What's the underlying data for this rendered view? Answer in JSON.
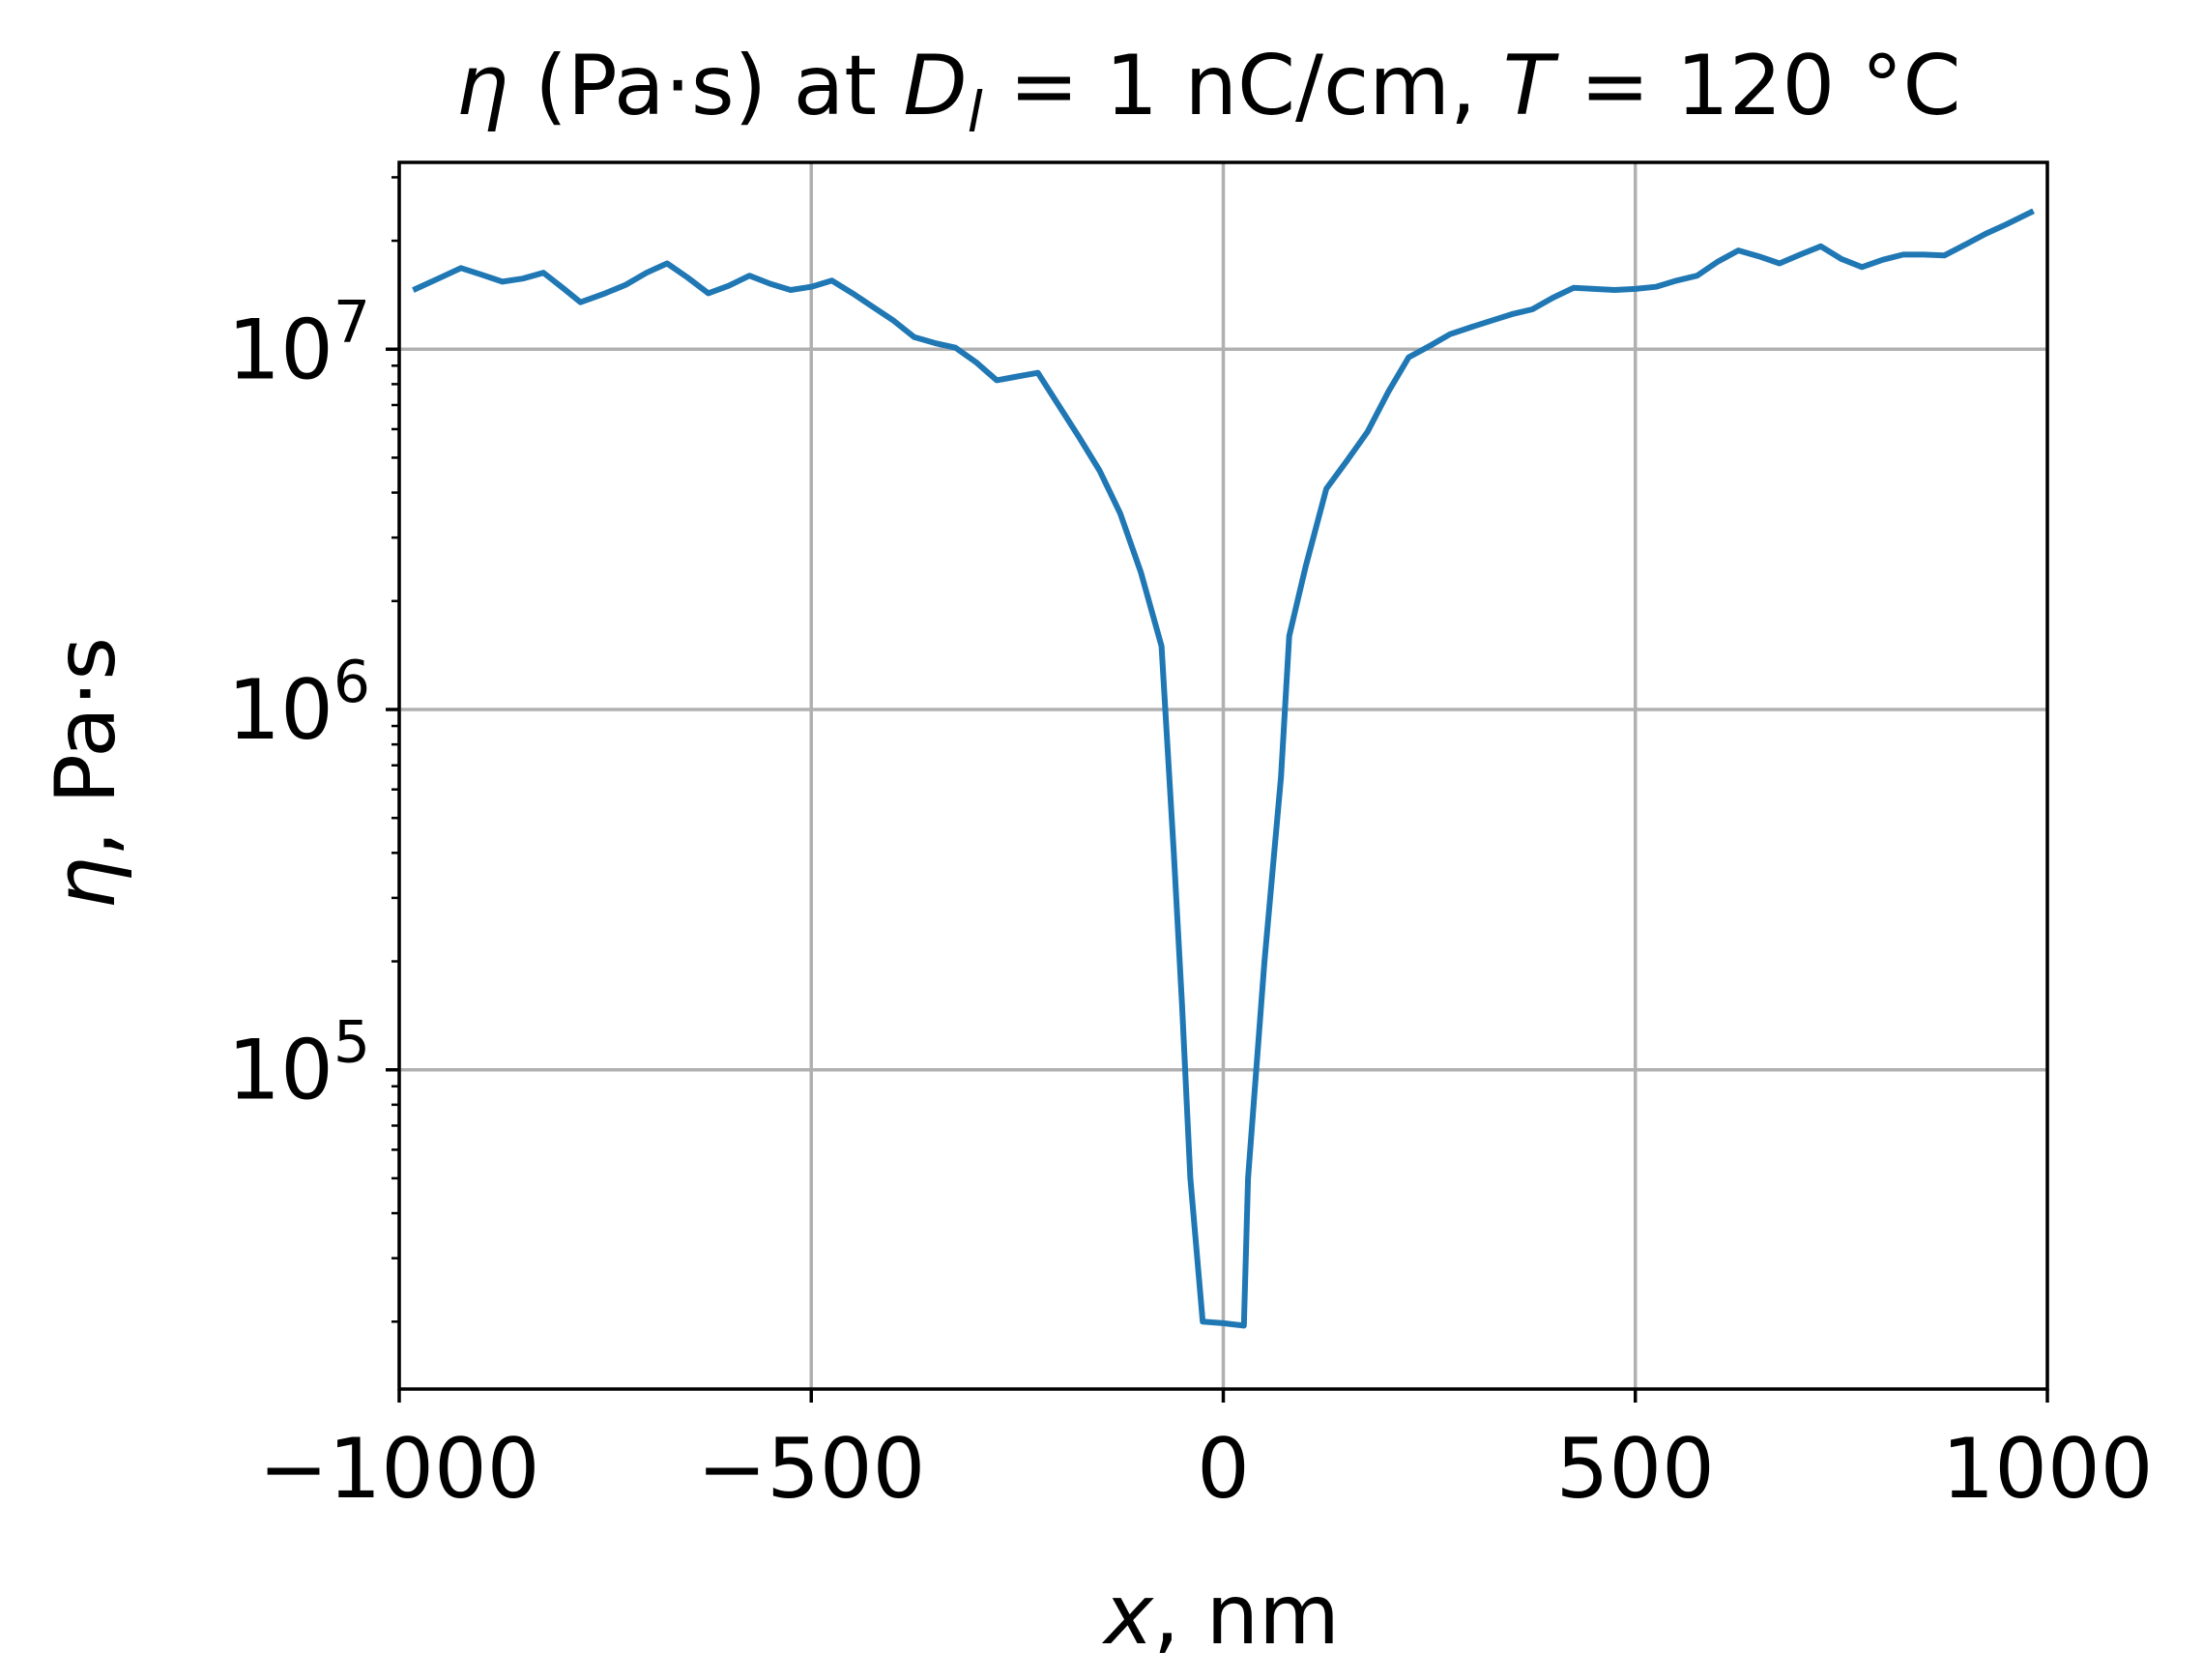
{
  "chart_data": {
    "type": "line",
    "title_parts": {
      "eta": "η",
      "t1": " (Pa·s) at ",
      "D": "D",
      "l": "l",
      "t2": " = 1 nC/cm, ",
      "T": "T",
      "t3": " = 120 °C"
    },
    "xlabel_parts": {
      "x": "x",
      "rest": ", nm"
    },
    "ylabel_parts": {
      "eta": "η",
      "rest": ", Pa·s"
    },
    "xlim": [
      -1000,
      1000
    ],
    "ylim": [
      13000,
      33000000
    ],
    "yscale": "log",
    "grid": true,
    "x_ticks": [
      {
        "value": -1000,
        "label": "−1000"
      },
      {
        "value": -500,
        "label": "−500"
      },
      {
        "value": 0,
        "label": "0"
      },
      {
        "value": 500,
        "label": "500"
      },
      {
        "value": 1000,
        "label": "1000"
      }
    ],
    "y_ticks": [
      {
        "value": 100000,
        "base": "10",
        "exp": "5"
      },
      {
        "value": 1000000,
        "base": "10",
        "exp": "6"
      },
      {
        "value": 10000000,
        "base": "10",
        "exp": "7"
      }
    ],
    "series": [
      {
        "color": "#1f77b4",
        "points": [
          [
            -980,
            14700000
          ],
          [
            -950,
            15800000
          ],
          [
            -925,
            16800000
          ],
          [
            -900,
            16100000
          ],
          [
            -875,
            15400000
          ],
          [
            -850,
            15700000
          ],
          [
            -825,
            16300000
          ],
          [
            -800,
            14700000
          ],
          [
            -780,
            13500000
          ],
          [
            -750,
            14300000
          ],
          [
            -725,
            15100000
          ],
          [
            -700,
            16300000
          ],
          [
            -675,
            17300000
          ],
          [
            -650,
            15800000
          ],
          [
            -625,
            14300000
          ],
          [
            -600,
            15000000
          ],
          [
            -575,
            16000000
          ],
          [
            -550,
            15200000
          ],
          [
            -525,
            14600000
          ],
          [
            -500,
            14900000
          ],
          [
            -475,
            15500000
          ],
          [
            -450,
            14300000
          ],
          [
            -425,
            13100000
          ],
          [
            -400,
            12000000
          ],
          [
            -375,
            10800000
          ],
          [
            -350,
            10400000
          ],
          [
            -325,
            10100000
          ],
          [
            -300,
            9200000
          ],
          [
            -275,
            8200000
          ],
          [
            -250,
            8400000
          ],
          [
            -225,
            8600000
          ],
          [
            -200,
            7000000
          ],
          [
            -175,
            5700000
          ],
          [
            -150,
            4600000
          ],
          [
            -125,
            3500000
          ],
          [
            -100,
            2400000
          ],
          [
            -75,
            1500000
          ],
          [
            -60,
            400000
          ],
          [
            -50,
            150000
          ],
          [
            -40,
            50000
          ],
          [
            -25,
            20000
          ],
          [
            0,
            19800.0
          ],
          [
            25,
            19500
          ],
          [
            30,
            50000
          ],
          [
            50,
            200000
          ],
          [
            70,
            650000
          ],
          [
            80,
            1600000
          ],
          [
            100,
            2500000
          ],
          [
            125,
            4100000
          ],
          [
            150,
            4900000
          ],
          [
            175,
            5900000
          ],
          [
            200,
            7600000
          ],
          [
            225,
            9500000
          ],
          [
            250,
            10200000
          ],
          [
            275,
            11000000
          ],
          [
            300,
            11500000
          ],
          [
            325,
            12000000
          ],
          [
            350,
            12500000
          ],
          [
            375,
            12900000
          ],
          [
            400,
            13900000
          ],
          [
            425,
            14800000
          ],
          [
            450,
            14700000
          ],
          [
            475,
            14600000
          ],
          [
            500,
            14700000
          ],
          [
            525,
            14900000
          ],
          [
            550,
            15500000
          ],
          [
            575,
            16000000
          ],
          [
            600,
            17500000
          ],
          [
            625,
            18800000
          ],
          [
            650,
            18100000
          ],
          [
            675,
            17300000
          ],
          [
            700,
            18300000
          ],
          [
            725,
            19300000
          ],
          [
            750,
            17800000
          ],
          [
            775,
            16900000
          ],
          [
            800,
            17700000
          ],
          [
            825,
            18300000
          ],
          [
            850,
            18300000
          ],
          [
            875,
            18200000
          ],
          [
            900,
            19500000
          ],
          [
            925,
            20900000
          ],
          [
            950,
            22200000
          ],
          [
            980,
            24000000
          ]
        ]
      }
    ]
  }
}
